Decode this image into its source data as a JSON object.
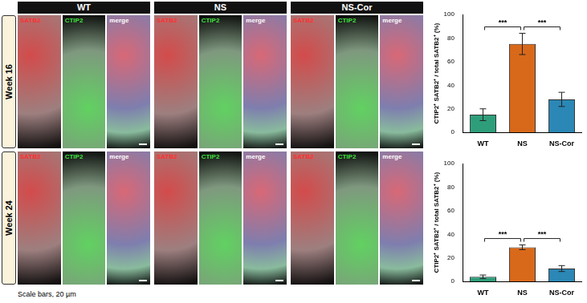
{
  "figure": {
    "columns": [
      "WT",
      "NS",
      "NS-Cor"
    ],
    "channels": [
      "SATB2",
      "CTIP2",
      "merge"
    ],
    "rows": [
      "Week 16",
      "Week 24"
    ],
    "scale_note": "Scale bars, 20 µm"
  },
  "chart_data": [
    {
      "type": "bar",
      "title": "Week 16",
      "categories": [
        "WT",
        "NS",
        "NS-Cor"
      ],
      "values": [
        15,
        75,
        28
      ],
      "errors": [
        5,
        9,
        6
      ],
      "colors": [
        "#2e9e7a",
        "#d9691a",
        "#2b87b5"
      ],
      "ylabel": "CTIP2⁺ SATB2⁺ / total SATB2⁺ (%)",
      "ylim": [
        0,
        100
      ],
      "yticks": [
        0,
        20,
        40,
        60,
        80,
        100
      ],
      "grid": false,
      "annotations": [
        {
          "from": "WT",
          "to": "NS",
          "text": "***"
        },
        {
          "from": "NS",
          "to": "NS-Cor",
          "text": "***"
        }
      ]
    },
    {
      "type": "bar",
      "title": "Week 24",
      "categories": [
        "WT",
        "NS",
        "NS-Cor"
      ],
      "values": [
        4,
        29,
        11
      ],
      "errors": [
        1.5,
        2,
        2.5
      ],
      "colors": [
        "#2e9e7a",
        "#d9691a",
        "#2b87b5"
      ],
      "ylabel": "CTIP2⁺ SATB2⁺ / total SATB2⁺ (%)",
      "ylim": [
        0,
        100
      ],
      "yticks": [
        0,
        20,
        40,
        60,
        80,
        100
      ],
      "grid": false,
      "annotations": [
        {
          "from": "WT",
          "to": "NS",
          "text": "***"
        },
        {
          "from": "NS",
          "to": "NS-Cor",
          "text": "***"
        }
      ]
    }
  ]
}
